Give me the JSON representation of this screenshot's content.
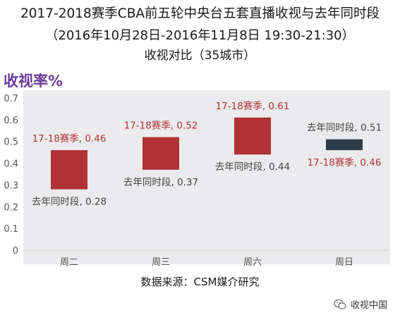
{
  "header": {
    "title_line1": "2017-2018赛季CBA前五轮中央台五套直播收视与去年同时段",
    "title_line2": "（2016年10月28日-2016年11月8日 19:30-21:30）",
    "title_line3": "收视对比（35城市）"
  },
  "footer": {
    "source": "数据来源：CSM媒介研究",
    "brand": "收视中国"
  },
  "colors": {
    "current_season": "#b13135",
    "last_year": "#2e3c4c",
    "plot_bg": "#ebebed",
    "label_red": "#b13135",
    "label_dark": "#444444",
    "ylabel": "#6d3a9c"
  },
  "chart_data": {
    "type": "bar",
    "ylabel": "收视率%",
    "ylim": [
      0,
      0.7
    ],
    "yticks": [
      "0",
      "0.1",
      "0.2",
      "0.3",
      "0.4",
      "0.5",
      "0.6",
      "0.7"
    ],
    "categories": [
      "周二",
      "周三",
      "周六",
      "周日"
    ],
    "series": [
      {
        "name": "17-18赛季",
        "values": [
          0.46,
          0.52,
          0.61,
          0.46
        ]
      },
      {
        "name": "去年同时段",
        "values": [
          0.28,
          0.37,
          0.44,
          0.51
        ]
      }
    ],
    "labels": {
      "current": [
        "17-18赛季, 0.46",
        "17-18赛季, 0.52",
        "17-18赛季, 0.61",
        "17-18赛季, 0.46"
      ],
      "previous": [
        "去年同时段, 0.28",
        "去年同时段, 0.37",
        "去年同时段, 0.44",
        "去年同时段, 0.51"
      ]
    },
    "grid": false,
    "legend": "none"
  }
}
